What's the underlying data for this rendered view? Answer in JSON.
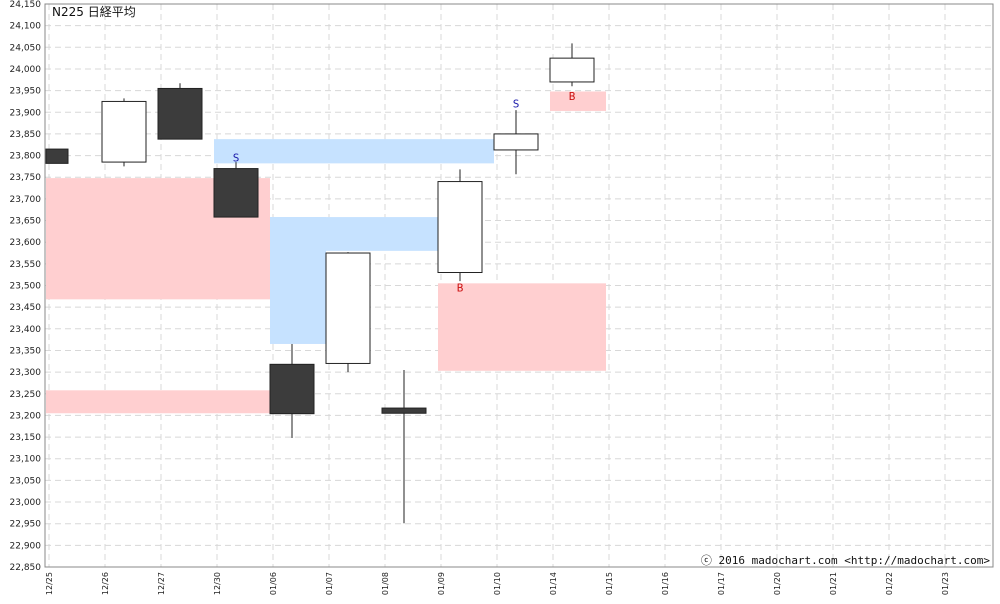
{
  "chart_data": {
    "type": "candlestick",
    "title": "N225 日経平均",
    "copyright": "ⓒ 2016 madochart.com  <http://madochart.com>",
    "ylim": [
      22850,
      24150
    ],
    "yticks": [
      24150,
      24100,
      24050,
      24000,
      23950,
      23900,
      23850,
      23800,
      23750,
      23700,
      23650,
      23600,
      23550,
      23500,
      23450,
      23400,
      23350,
      23300,
      23250,
      23200,
      23150,
      23100,
      23050,
      23000,
      22950,
      22900,
      22850
    ],
    "categories": [
      "12/25",
      "12/26",
      "12/27",
      "12/30",
      "01/06",
      "01/07",
      "01/08",
      "01/09",
      "01/10",
      "01/14",
      "01/15",
      "01/16",
      "01/17",
      "01/20",
      "01/21",
      "01/22",
      "01/23"
    ],
    "grid": true,
    "candles": [
      {
        "date": "12/25",
        "open": 23815,
        "high": 23815,
        "low": 23782,
        "close": 23782
      },
      {
        "date": "12/26",
        "open": 23785,
        "high": 23932,
        "low": 23775,
        "close": 23925
      },
      {
        "date": "12/27",
        "open": 23955,
        "high": 23967,
        "low": 23838,
        "close": 23838
      },
      {
        "date": "12/30",
        "open": 23770,
        "high": 23785,
        "low": 23658,
        "close": 23658
      },
      {
        "date": "01/06",
        "open": 23318,
        "high": 23365,
        "low": 23148,
        "close": 23204
      },
      {
        "date": "01/07",
        "open": 23320,
        "high": 23577,
        "low": 23300,
        "close": 23575
      },
      {
        "date": "01/08",
        "open": 23217,
        "high": 23305,
        "low": 22951,
        "close": 23205
      },
      {
        "date": "01/09",
        "open": 23530,
        "high": 23768,
        "low": 23510,
        "close": 23740
      },
      {
        "date": "01/10",
        "open": 23813,
        "high": 23905,
        "low": 23757,
        "close": 23850
      },
      {
        "date": "01/14",
        "open": 23970,
        "high": 24059,
        "low": 23960,
        "close": 24025
      }
    ],
    "zones": [
      {
        "type": "support",
        "from": "12/25",
        "to": "12/30",
        "low": 23468,
        "high": 23748
      },
      {
        "type": "support",
        "from": "12/25",
        "to": "12/30",
        "low": 23205,
        "high": 23258
      },
      {
        "type": "resistance",
        "from": "12/30",
        "to": "01/09",
        "low": 23782,
        "high": 23838
      },
      {
        "type": "resistance",
        "from": "01/06",
        "to": "01/08",
        "low": 23580,
        "high": 23658
      },
      {
        "type": "resistance",
        "from": "01/06",
        "to": "01/06",
        "low": 23365,
        "high": 23658
      },
      {
        "type": "support",
        "from": "01/09",
        "to": "01/14",
        "low": 23303,
        "high": 23505
      },
      {
        "type": "support",
        "from": "01/14",
        "to": "01/14",
        "low": 23903,
        "high": 23948
      }
    ],
    "signals": [
      {
        "date": "12/30",
        "label": "S",
        "price": 23795,
        "color": "#1a1aaa"
      },
      {
        "date": "01/09",
        "label": "B",
        "price": 23495,
        "color": "#cc1111"
      },
      {
        "date": "01/10",
        "label": "S",
        "price": 23920,
        "color": "#1a1aaa"
      },
      {
        "date": "01/14",
        "label": "B",
        "price": 23938,
        "color": "#cc1111"
      }
    ],
    "colors": {
      "bull_fill": "#ffffff",
      "bear_fill": "#3c3c3c",
      "candle_stroke": "#222222",
      "support_zone": "#ffcfd0",
      "resistance_zone": "#c6e2ff",
      "grid": "#d8d8d8",
      "axis": "#888888"
    }
  }
}
